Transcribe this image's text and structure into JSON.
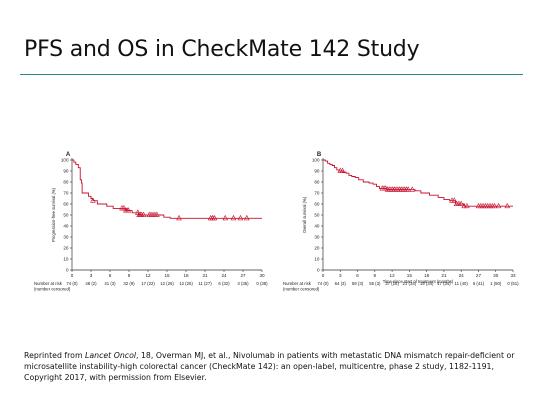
{
  "slide": {
    "title": "PFS and OS in CheckMate 142 Study"
  },
  "colors": {
    "curve": "#c8102e",
    "axis": "#333333",
    "title_rule": "#2e8b8b"
  },
  "chart_data": [
    {
      "type": "line",
      "panel_label": "A",
      "ylabel": "Progression-free survival (%)",
      "xlabel": "",
      "xlim": [
        0,
        30
      ],
      "ylim": [
        0,
        100
      ],
      "x_ticks": [
        0,
        3,
        6,
        9,
        12,
        15,
        18,
        21,
        24,
        27,
        30
      ],
      "y_ticks": [
        0,
        10,
        20,
        30,
        40,
        50,
        60,
        70,
        80,
        90,
        100
      ],
      "step_points": [
        [
          0,
          100
        ],
        [
          0.3,
          98
        ],
        [
          0.6,
          96
        ],
        [
          1.0,
          93
        ],
        [
          1.3,
          82
        ],
        [
          1.5,
          79
        ],
        [
          1.6,
          70
        ],
        [
          2.6,
          67
        ],
        [
          3.0,
          65
        ],
        [
          3.3,
          63
        ],
        [
          4.0,
          60
        ],
        [
          5.5,
          58
        ],
        [
          6.5,
          56
        ],
        [
          8.5,
          54
        ],
        [
          9.5,
          52
        ],
        [
          10.5,
          50
        ],
        [
          14.5,
          48
        ],
        [
          15.5,
          47
        ],
        [
          30,
          47
        ]
      ],
      "censor_x": [
        3.3,
        7.9,
        8.2,
        8.5,
        8.7,
        8.9,
        10.4,
        10.6,
        10.8,
        11.0,
        11.3,
        12.2,
        12.5,
        12.8,
        13.1,
        13.4,
        16.9,
        21.9,
        22.2,
        22.5,
        24.2,
        25.5,
        26.6,
        27.6
      ],
      "risk_table": {
        "label": "Number at risk",
        "sublabel": "(number censored)",
        "x": [
          0,
          3,
          6,
          9,
          12,
          15,
          18,
          21,
          24,
          27,
          30
        ],
        "values": [
          "74 (0)",
          "48 (2)",
          "41 (3)",
          "32 (9)",
          "17 (22)",
          "12 (26)",
          "12 (26)",
          "11 (27)",
          "6 (32)",
          "3 (35)",
          "0 (38)"
        ]
      }
    },
    {
      "type": "line",
      "panel_label": "B",
      "ylabel": "Overall survival (%)",
      "xlabel": "Time since start of treatment (months)",
      "xlim": [
        0,
        33
      ],
      "ylim": [
        0,
        100
      ],
      "x_ticks": [
        0,
        3,
        6,
        9,
        12,
        15,
        18,
        21,
        24,
        27,
        30,
        33
      ],
      "y_ticks": [
        0,
        10,
        20,
        30,
        40,
        50,
        60,
        70,
        80,
        90,
        100
      ],
      "step_points": [
        [
          0,
          100
        ],
        [
          0.4,
          99
        ],
        [
          0.8,
          97
        ],
        [
          1.2,
          96
        ],
        [
          1.6,
          95
        ],
        [
          2.0,
          93
        ],
        [
          2.4,
          91
        ],
        [
          2.8,
          90
        ],
        [
          3.5,
          89
        ],
        [
          4.0,
          88
        ],
        [
          4.5,
          86
        ],
        [
          5.0,
          85
        ],
        [
          5.6,
          84
        ],
        [
          6.2,
          82
        ],
        [
          7.0,
          80
        ],
        [
          8.0,
          79
        ],
        [
          8.7,
          78
        ],
        [
          9.3,
          76
        ],
        [
          9.8,
          74
        ],
        [
          11.0,
          73
        ],
        [
          16.0,
          72
        ],
        [
          17.0,
          70
        ],
        [
          18.5,
          68
        ],
        [
          20.0,
          66
        ],
        [
          21.0,
          64
        ],
        [
          22.0,
          63
        ],
        [
          23.0,
          60
        ],
        [
          24.5,
          58
        ],
        [
          33,
          58
        ]
      ],
      "censor_x": [
        3.0,
        3.4,
        10.3,
        10.6,
        10.9,
        11.2,
        11.5,
        11.8,
        12.1,
        12.4,
        12.7,
        13.0,
        13.3,
        13.6,
        13.9,
        14.2,
        14.5,
        14.8,
        15.5,
        22.4,
        22.8,
        23.2,
        23.6,
        24.0,
        24.5,
        25.0,
        27.0,
        27.4,
        27.8,
        28.2,
        28.6,
        29.0,
        29.4,
        29.8,
        30.5,
        32.0
      ],
      "risk_table": {
        "label": "Number at risk",
        "sublabel": "(number censored)",
        "x": [
          0,
          3,
          6,
          9,
          12,
          15,
          18,
          21,
          24,
          27,
          30,
          33
        ],
        "values": [
          "74 (0)",
          "64 (3)",
          "59 (3)",
          "55 (3)",
          "37 (18)",
          "21 (34)",
          "19 (34)",
          "17 (34)",
          "11 (40)",
          "6 (41)",
          "1 (50)",
          "0 (51)"
        ]
      }
    }
  ],
  "caption": {
    "prefix": "Reprinted from ",
    "journal": "Lancet Oncol",
    "text": ", 18, Overman MJ, et al., Nivolumab in patients with metastatic DNA mismatch repair-deficient or microsatellite instability-high colorectal cancer (CheckMate 142): an open-label, multicentre, phase 2 study, 1182-1191, Copyright 2017, with permission from Elsevier."
  }
}
